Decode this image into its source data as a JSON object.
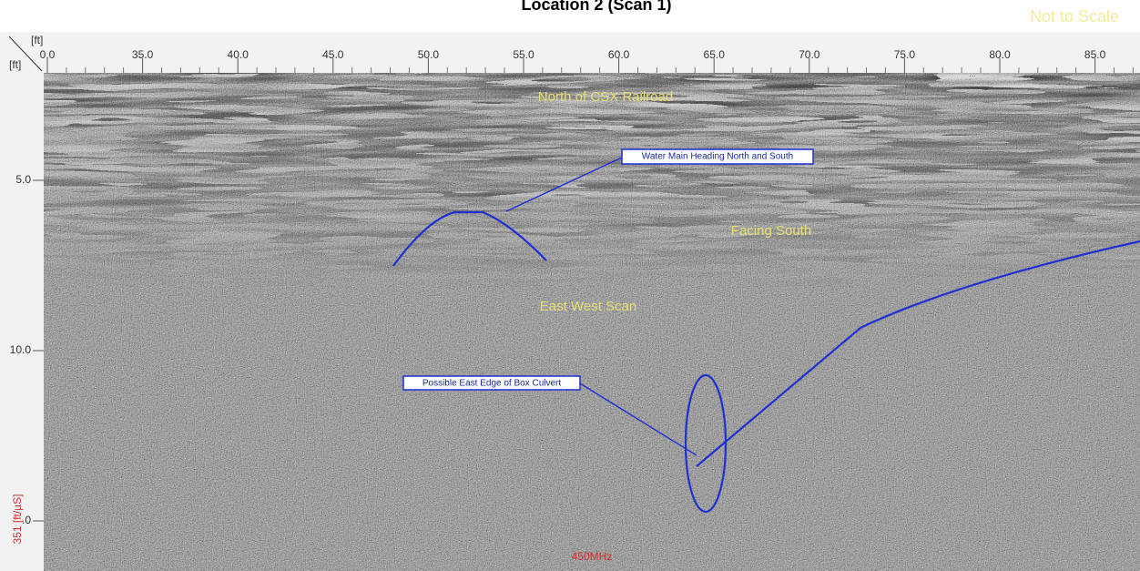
{
  "header": {
    "title": "Location 2 (Scan 1)",
    "note": "Not to Scale"
  },
  "axes": {
    "x_unit": "[ft]",
    "y_unit": "[ft]",
    "x_ticks": [
      "0.0",
      "35.0",
      "40.0",
      "45.0",
      "50.0",
      "55.0",
      "60.0",
      "65.0",
      "70.0",
      "75.0",
      "80.0",
      "85.0"
    ],
    "y_ticks": [
      "5.0",
      "10.0",
      ".0"
    ]
  },
  "scan": {
    "velocity": "351 [ft/µS]",
    "frequency": "450MHz"
  },
  "annotations": [
    "North of CSX Railroad",
    "Water Main Heading North and South",
    "Facing South",
    "East West Scan",
    "Possible East Edge of Box Culvert"
  ]
}
